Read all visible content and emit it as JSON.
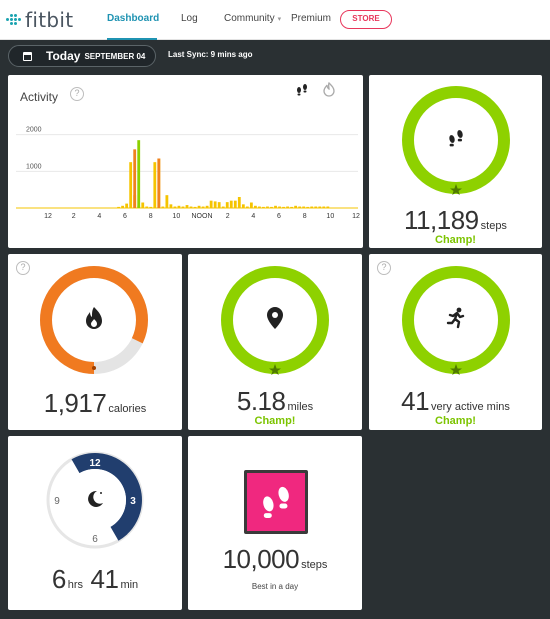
{
  "app": {
    "logo": "fitbit"
  },
  "nav": {
    "items": [
      {
        "label": "Dashboard",
        "active": true
      },
      {
        "label": "Log"
      },
      {
        "label": "Community"
      },
      {
        "label": "Premium"
      }
    ],
    "store_label": "STORE"
  },
  "datebar": {
    "today": "Today",
    "date": "SEPTEMBER 04",
    "sync": "Last Sync: 9 mins ago"
  },
  "activity": {
    "title": "Activity",
    "toggles": [
      "steps-icon",
      "flame-icon"
    ],
    "chart_data": {
      "type": "bar",
      "ylim": [
        0,
        2400
      ],
      "yticks": [
        1000,
        2000
      ],
      "x_tick_labels": [
        "12",
        "2",
        "4",
        "6",
        "8",
        "10",
        "NOON",
        "2",
        "4",
        "6",
        "8",
        "10",
        "12"
      ],
      "series": [
        {
          "color": "#f5c400",
          "values": [
            0,
            0,
            0,
            0,
            0,
            0,
            0,
            0,
            0,
            0,
            0,
            0,
            0,
            0,
            0,
            0,
            0,
            0,
            0,
            0,
            0,
            0,
            0,
            0,
            0,
            30,
            60,
            120,
            1250,
            350,
            60,
            150,
            40,
            30,
            1250,
            1350,
            40,
            350,
            100,
            40,
            60,
            40,
            80,
            40,
            30,
            60,
            40,
            60,
            200,
            180,
            160,
            40,
            160,
            200,
            200,
            300,
            100,
            40,
            150,
            60,
            40,
            30,
            40,
            30,
            60,
            40,
            30,
            40,
            30,
            60,
            40,
            40,
            30,
            40,
            40,
            40,
            40,
            40,
            0,
            0,
            0,
            0,
            0,
            0,
            0
          ]
        },
        {
          "color": "#f0821e",
          "values": [
            0,
            0,
            0,
            0,
            0,
            0,
            0,
            0,
            0,
            0,
            0,
            0,
            0,
            0,
            0,
            0,
            0,
            0,
            0,
            0,
            0,
            0,
            0,
            0,
            0,
            0,
            0,
            0,
            0,
            1600,
            0,
            0,
            0,
            0,
            0,
            1350,
            0,
            0,
            0,
            0,
            0,
            0,
            0,
            0,
            0,
            0,
            0,
            0,
            0,
            0,
            0,
            0,
            0,
            0,
            0,
            0,
            0,
            0,
            0,
            0,
            0,
            0,
            0,
            0,
            0,
            0,
            0,
            0,
            0,
            0,
            0,
            0,
            0,
            0,
            0,
            0,
            0,
            0,
            0,
            0,
            0,
            0,
            0,
            0,
            0
          ]
        },
        {
          "color": "#8cd000",
          "values": [
            0,
            0,
            0,
            0,
            0,
            0,
            0,
            0,
            0,
            0,
            0,
            0,
            0,
            0,
            0,
            0,
            0,
            0,
            0,
            0,
            0,
            0,
            0,
            0,
            0,
            0,
            0,
            0,
            0,
            0,
            1850,
            0,
            0,
            0,
            0,
            0,
            0,
            0,
            0,
            0,
            0,
            0,
            0,
            0,
            0,
            0,
            0,
            0,
            0,
            0,
            0,
            0,
            0,
            0,
            0,
            0,
            0,
            0,
            0,
            0,
            0,
            0,
            0,
            0,
            0,
            0,
            0,
            0,
            0,
            0,
            0,
            0,
            0,
            0,
            0,
            0,
            0,
            0,
            0,
            0,
            0,
            0,
            0,
            0,
            0
          ]
        }
      ]
    }
  },
  "steps": {
    "value": "11,189",
    "unit": "steps",
    "status": "Champ!",
    "icon": "footsteps-icon",
    "color": "#8ed100",
    "progress": 1.0
  },
  "calories": {
    "value": "1,917",
    "unit": "calories",
    "icon": "flame-icon",
    "color": "#f07a20",
    "progress": 0.82
  },
  "distance": {
    "value": "5.18",
    "unit": "miles",
    "status": "Champ!",
    "icon": "location-pin-icon",
    "color": "#8ed100",
    "progress": 1.0
  },
  "active": {
    "value": "41",
    "unit": "very active mins",
    "status": "Champ!",
    "icon": "runner-icon",
    "color": "#8ed100",
    "progress": 1.0
  },
  "sleep": {
    "hours": "6",
    "hours_unit": "hrs",
    "mins": "41",
    "mins_unit": "min",
    "icon": "moon-icon",
    "color": "#213e6e",
    "clock_labels": {
      "top": "12",
      "right": "3",
      "bottom": "6",
      "left": "9"
    }
  },
  "badge": {
    "value": "10,000",
    "unit": "steps",
    "caption": "Best in a day",
    "icon": "footsteps-icon",
    "color": "#f0287f"
  }
}
